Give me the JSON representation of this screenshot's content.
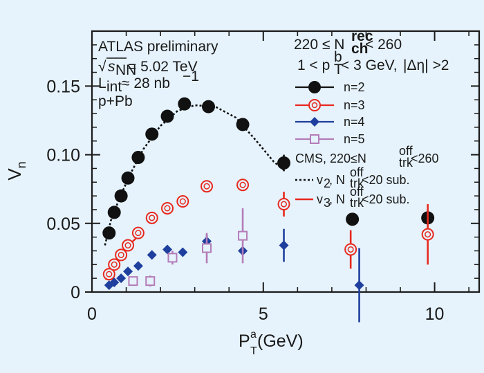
{
  "chart_data": {
    "type": "scatter",
    "xlabel_main": "P",
    "xlabel_sub": "T",
    "xlabel_sup": "a",
    "xlabel_unit": " (GeV)",
    "ylabel_main": "V",
    "ylabel_sub": "n",
    "xlim": [
      0,
      11.3
    ],
    "ylim": [
      0,
      0.19
    ],
    "x_ticks": [
      "0",
      "5",
      "10"
    ],
    "y_ticks": [
      "0",
      "0.05",
      "0.10",
      "0.15"
    ],
    "x_tick_values": [
      0,
      5,
      10
    ],
    "y_tick_values": [
      0,
      0.05,
      0.1,
      0.15
    ],
    "annotations": {
      "atlas": "ATLAS preliminary",
      "energy": "= 5.02 TeV",
      "sqrt_sym": "√",
      "s_nn": "s",
      "s_nn_sub": "NN",
      "lumi_L": "L",
      "lumi_sub": "int",
      "lumi_val": "≈ 28 nb",
      "lumi_exp": "−1",
      "system": "p+Pb",
      "nch_pre": "220 ≤ N",
      "nch_sup": "rec",
      "nch_sub": "ch",
      "nch_post": "< 260",
      "pt_pre": "1 < p",
      "pt_sup": "b",
      "pt_sub": "T",
      "pt_post": "< 3 GeV,",
      "deta": "|Δη| >2"
    },
    "legend": {
      "n2": "n=2",
      "n3": "n=3",
      "n4": "n=4",
      "n5": "n=5",
      "cms_pre": "CMS, 220≤N",
      "cms_sup": "off",
      "cms_sub": "trk",
      "cms_post": "<260",
      "v2_pre": "v",
      "v2_sub": "2",
      "v3_sub": "3",
      "sub_mid": ", N",
      "sub_post": "<20 sub."
    },
    "series": [
      {
        "name": "n=2",
        "color": "#111111",
        "marker": "filled-circle",
        "points": [
          [
            0.5,
            0.043
          ],
          [
            0.65,
            0.058
          ],
          [
            0.85,
            0.07
          ],
          [
            1.05,
            0.083
          ],
          [
            1.35,
            0.098
          ],
          [
            1.75,
            0.115
          ],
          [
            2.2,
            0.128
          ],
          [
            2.7,
            0.137
          ],
          [
            3.4,
            0.135
          ],
          [
            4.4,
            0.122
          ],
          [
            5.6,
            0.094
          ],
          [
            7.6,
            0.053
          ],
          [
            9.8,
            0.054
          ]
        ],
        "errors": [
          0,
          0,
          0,
          0,
          0,
          0,
          0,
          0,
          0,
          0,
          0.006,
          0.004,
          0.006
        ]
      },
      {
        "name": "n=3",
        "color": "#e8281e",
        "marker": "open-circle-dot",
        "points": [
          [
            0.5,
            0.013
          ],
          [
            0.65,
            0.02
          ],
          [
            0.85,
            0.027
          ],
          [
            1.05,
            0.034
          ],
          [
            1.35,
            0.043
          ],
          [
            1.75,
            0.054
          ],
          [
            2.2,
            0.061
          ],
          [
            2.65,
            0.066
          ],
          [
            3.35,
            0.077
          ],
          [
            4.4,
            0.078
          ],
          [
            5.6,
            0.064
          ],
          [
            7.55,
            0.031
          ],
          [
            9.8,
            0.042
          ]
        ],
        "errors": [
          0,
          0,
          0,
          0,
          0,
          0,
          0,
          0,
          0,
          0,
          0.009,
          0.014,
          0.022
        ]
      },
      {
        "name": "n=4",
        "color": "#1f3f9e",
        "marker": "filled-diamond",
        "points": [
          [
            0.5,
            0.005
          ],
          [
            0.65,
            0.007
          ],
          [
            0.85,
            0.01
          ],
          [
            1.05,
            0.015
          ],
          [
            1.35,
            0.019
          ],
          [
            1.75,
            0.027
          ],
          [
            2.2,
            0.031
          ],
          [
            2.65,
            0.029
          ],
          [
            3.35,
            0.037
          ],
          [
            4.4,
            0.03
          ],
          [
            5.6,
            0.034
          ],
          [
            7.8,
            0.005
          ]
        ],
        "errors": [
          0,
          0,
          0,
          0,
          0,
          0,
          0,
          0,
          0.005,
          0,
          0.012,
          0.027
        ]
      },
      {
        "name": "n=5",
        "color": "#b47cb8",
        "marker": "open-square",
        "points": [
          [
            1.2,
            0.008
          ],
          [
            1.7,
            0.008
          ],
          [
            2.35,
            0.025
          ],
          [
            3.35,
            0.032
          ],
          [
            4.4,
            0.041
          ]
        ],
        "errors": [
          0,
          0.004,
          0.005,
          0.011,
          0.02
        ]
      }
    ],
    "cms_curves": [
      {
        "name": "v2",
        "style": "dotted",
        "color": "#111111",
        "x": [
          0.38,
          0.55,
          0.8,
          1.1,
          1.5,
          2.0,
          2.5,
          3.0,
          3.6,
          4.2,
          4.8,
          5.3,
          5.6
        ],
        "y": [
          0.034,
          0.052,
          0.068,
          0.085,
          0.104,
          0.121,
          0.132,
          0.136,
          0.135,
          0.127,
          0.11,
          0.095,
          0.089
        ]
      },
      {
        "name": "v3",
        "style": "solid",
        "color": "#e8281e",
        "x": [
          0.4,
          0.6,
          0.85,
          1.15,
          1.45
        ],
        "y": [
          0.009,
          0.018,
          0.027,
          0.036,
          0.043
        ]
      }
    ]
  }
}
